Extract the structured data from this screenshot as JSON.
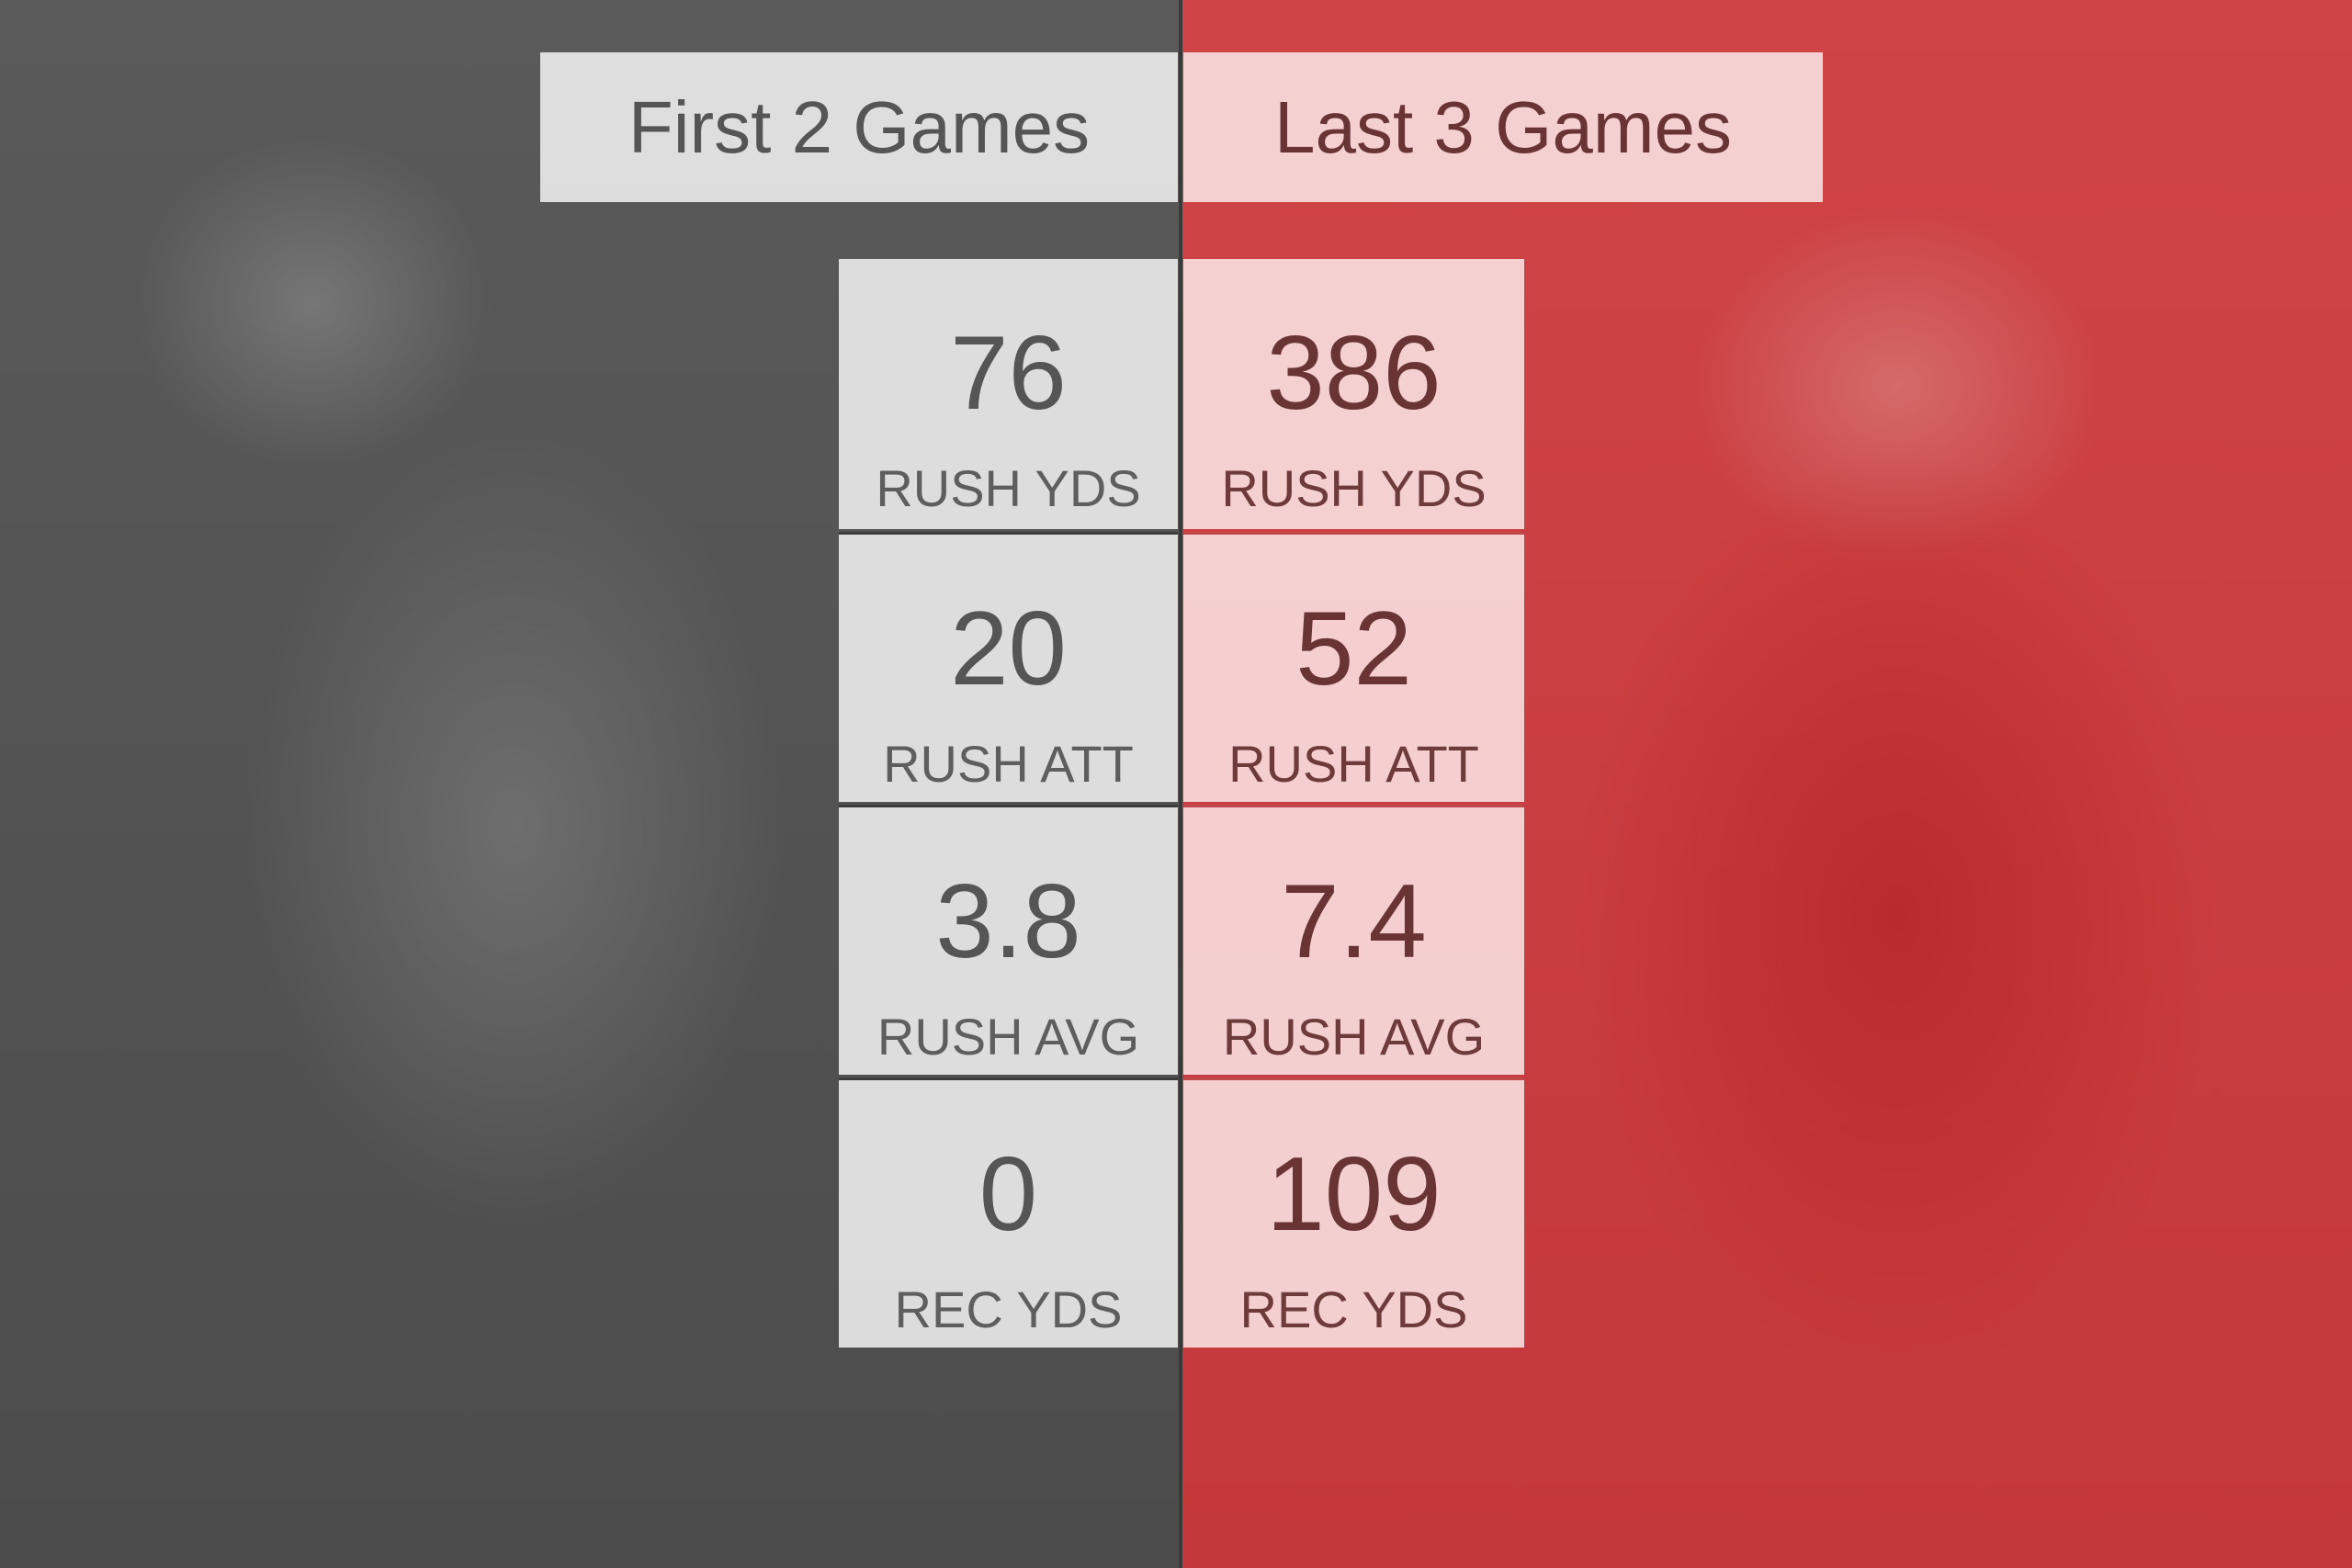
{
  "columns": [
    {
      "title": "First 2 Games",
      "stats": [
        {
          "value": 76,
          "label": "RUSH YDS"
        },
        {
          "value": 20,
          "label": "RUSH ATT"
        },
        {
          "value": 3.8,
          "label": "RUSH AVG"
        },
        {
          "value": 0,
          "label": "REC YDS"
        }
      ]
    },
    {
      "title": "Last 3 Games",
      "stats": [
        {
          "value": 386,
          "label": "RUSH YDS"
        },
        {
          "value": 52,
          "label": "RUSH ATT"
        },
        {
          "value": 7.4,
          "label": "RUSH AVG"
        },
        {
          "value": 109,
          "label": "REC YDS"
        }
      ]
    }
  ]
}
